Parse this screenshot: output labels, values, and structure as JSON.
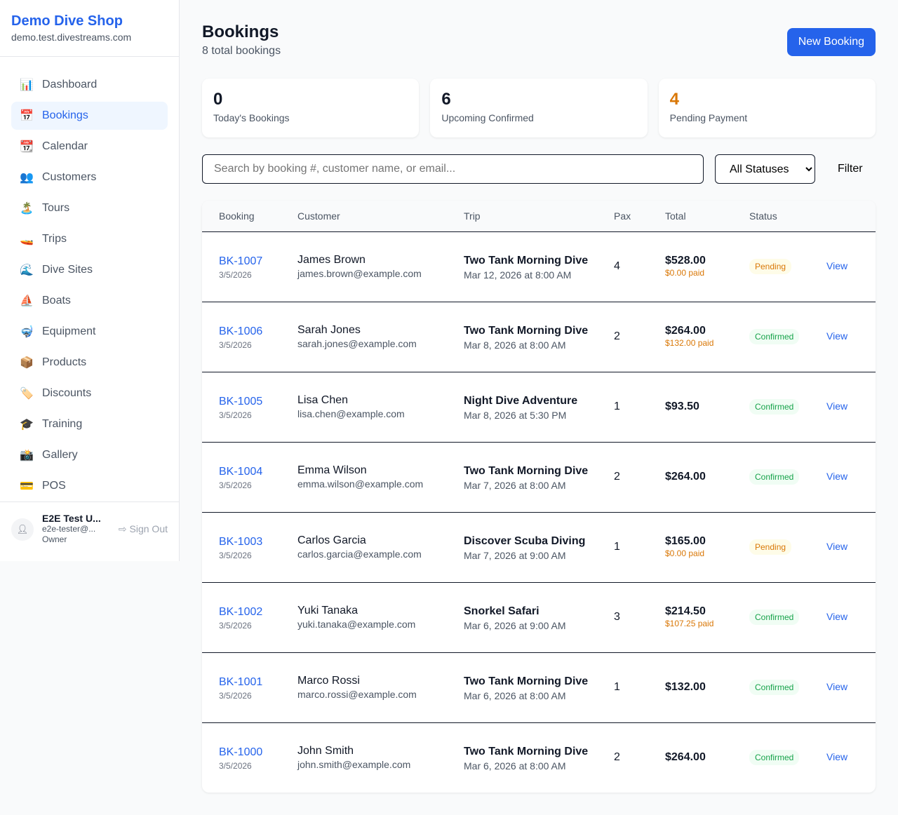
{
  "sidebar": {
    "brand": "Demo Dive Shop",
    "domain": "demo.test.divestreams.com",
    "items": [
      {
        "icon": "📊",
        "label": "Dashboard"
      },
      {
        "icon": "📅",
        "label": "Bookings",
        "active": true
      },
      {
        "icon": "📆",
        "label": "Calendar"
      },
      {
        "icon": "👥",
        "label": "Customers"
      },
      {
        "icon": "🏝️",
        "label": "Tours"
      },
      {
        "icon": "🚤",
        "label": "Trips"
      },
      {
        "icon": "🌊",
        "label": "Dive Sites"
      },
      {
        "icon": "⛵",
        "label": "Boats"
      },
      {
        "icon": "🤿",
        "label": "Equipment"
      },
      {
        "icon": "📦",
        "label": "Products"
      },
      {
        "icon": "🏷️",
        "label": "Discounts"
      },
      {
        "icon": "🎓",
        "label": "Training"
      },
      {
        "icon": "📸",
        "label": "Gallery"
      },
      {
        "icon": "💳",
        "label": "POS"
      }
    ],
    "user": {
      "name": "E2E Test U...",
      "email": "e2e-tester@...",
      "role": "Owner",
      "signout": "Sign Out"
    }
  },
  "header": {
    "title": "Bookings",
    "subtitle": "8 total bookings",
    "new_button": "New Booking"
  },
  "stats": [
    {
      "value": "0",
      "label": "Today's Bookings",
      "color": "#111827"
    },
    {
      "value": "6",
      "label": "Upcoming Confirmed",
      "color": "#111827"
    },
    {
      "value": "4",
      "label": "Pending Payment",
      "color": "#d97706"
    }
  ],
  "filters": {
    "search_placeholder": "Search by booking #, customer name, or email...",
    "status_selected": "All Statuses",
    "filter_button": "Filter"
  },
  "table": {
    "headers": [
      "Booking",
      "Customer",
      "Trip",
      "Pax",
      "Total",
      "Status",
      ""
    ],
    "rows": [
      {
        "id": "BK-1007",
        "date": "3/5/2026",
        "customer": "James Brown",
        "email": "james.brown@example.com",
        "trip": "Two Tank Morning Dive",
        "trip_date": "Mar 12, 2026 at 8:00 AM",
        "pax": "4",
        "total": "$528.00",
        "paid": "$0.00 paid",
        "status": "Pending",
        "action": "View"
      },
      {
        "id": "BK-1006",
        "date": "3/5/2026",
        "customer": "Sarah Jones",
        "email": "sarah.jones@example.com",
        "trip": "Two Tank Morning Dive",
        "trip_date": "Mar 8, 2026 at 8:00 AM",
        "pax": "2",
        "total": "$264.00",
        "paid": "$132.00 paid",
        "status": "Confirmed",
        "action": "View"
      },
      {
        "id": "BK-1005",
        "date": "3/5/2026",
        "customer": "Lisa Chen",
        "email": "lisa.chen@example.com",
        "trip": "Night Dive Adventure",
        "trip_date": "Mar 8, 2026 at 5:30 PM",
        "pax": "1",
        "total": "$93.50",
        "paid": "",
        "status": "Confirmed",
        "action": "View"
      },
      {
        "id": "BK-1004",
        "date": "3/5/2026",
        "customer": "Emma Wilson",
        "email": "emma.wilson@example.com",
        "trip": "Two Tank Morning Dive",
        "trip_date": "Mar 7, 2026 at 8:00 AM",
        "pax": "2",
        "total": "$264.00",
        "paid": "",
        "status": "Confirmed",
        "action": "View"
      },
      {
        "id": "BK-1003",
        "date": "3/5/2026",
        "customer": "Carlos Garcia",
        "email": "carlos.garcia@example.com",
        "trip": "Discover Scuba Diving",
        "trip_date": "Mar 7, 2026 at 9:00 AM",
        "pax": "1",
        "total": "$165.00",
        "paid": "$0.00 paid",
        "status": "Pending",
        "action": "View"
      },
      {
        "id": "BK-1002",
        "date": "3/5/2026",
        "customer": "Yuki Tanaka",
        "email": "yuki.tanaka@example.com",
        "trip": "Snorkel Safari",
        "trip_date": "Mar 6, 2026 at 9:00 AM",
        "pax": "3",
        "total": "$214.50",
        "paid": "$107.25 paid",
        "status": "Confirmed",
        "action": "View"
      },
      {
        "id": "BK-1001",
        "date": "3/5/2026",
        "customer": "Marco Rossi",
        "email": "marco.rossi@example.com",
        "trip": "Two Tank Morning Dive",
        "trip_date": "Mar 6, 2026 at 8:00 AM",
        "pax": "1",
        "total": "$132.00",
        "paid": "",
        "status": "Confirmed",
        "action": "View"
      },
      {
        "id": "BK-1000",
        "date": "3/5/2026",
        "customer": "John Smith",
        "email": "john.smith@example.com",
        "trip": "Two Tank Morning Dive",
        "trip_date": "Mar 6, 2026 at 8:00 AM",
        "pax": "2",
        "total": "$264.00",
        "paid": "",
        "status": "Confirmed",
        "action": "View"
      }
    ]
  }
}
